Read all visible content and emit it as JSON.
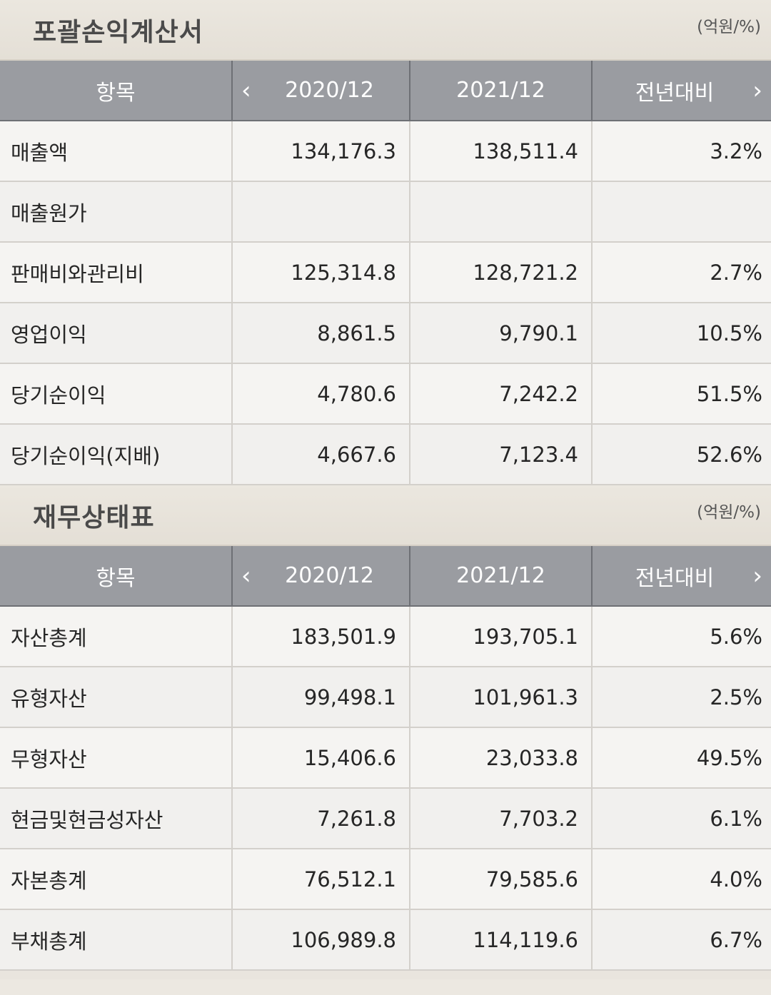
{
  "income": {
    "title": "포괄손익계산서",
    "unit": "(억원/%)",
    "headers": [
      "항목",
      "2020/12",
      "2021/12",
      "전년대비"
    ],
    "rows": [
      [
        "매출액",
        "134,176.3",
        "138,511.4",
        "3.2%"
      ],
      [
        "매출원가",
        "",
        "",
        ""
      ],
      [
        "판매비와관리비",
        "125,314.8",
        "128,721.2",
        "2.7%"
      ],
      [
        "영업이익",
        "8,861.5",
        "9,790.1",
        "10.5%"
      ],
      [
        "당기순이익",
        "4,780.6",
        "7,242.2",
        "51.5%"
      ],
      [
        "당기순이익(지배)",
        "4,667.6",
        "7,123.4",
        "52.6%"
      ]
    ]
  },
  "balance": {
    "title": "재무상태표",
    "unit": "(억원/%)",
    "headers": [
      "항목",
      "2020/12",
      "2021/12",
      "전년대비"
    ],
    "rows": [
      [
        "자산총계",
        "183,501.9",
        "193,705.1",
        "5.6%"
      ],
      [
        "유형자산",
        "99,498.1",
        "101,961.3",
        "2.5%"
      ],
      [
        "무형자산",
        "15,406.6",
        "23,033.8",
        "49.5%"
      ],
      [
        "현금및현금성자산",
        "7,261.8",
        "7,703.2",
        "6.1%"
      ],
      [
        "자본총계",
        "76,512.1",
        "79,585.6",
        "4.0%"
      ],
      [
        "부채총계",
        "106,989.8",
        "114,119.6",
        "6.7%"
      ]
    ]
  },
  "icons": {
    "prev": "chevron-left-icon",
    "next": "chevron-right-icon"
  }
}
